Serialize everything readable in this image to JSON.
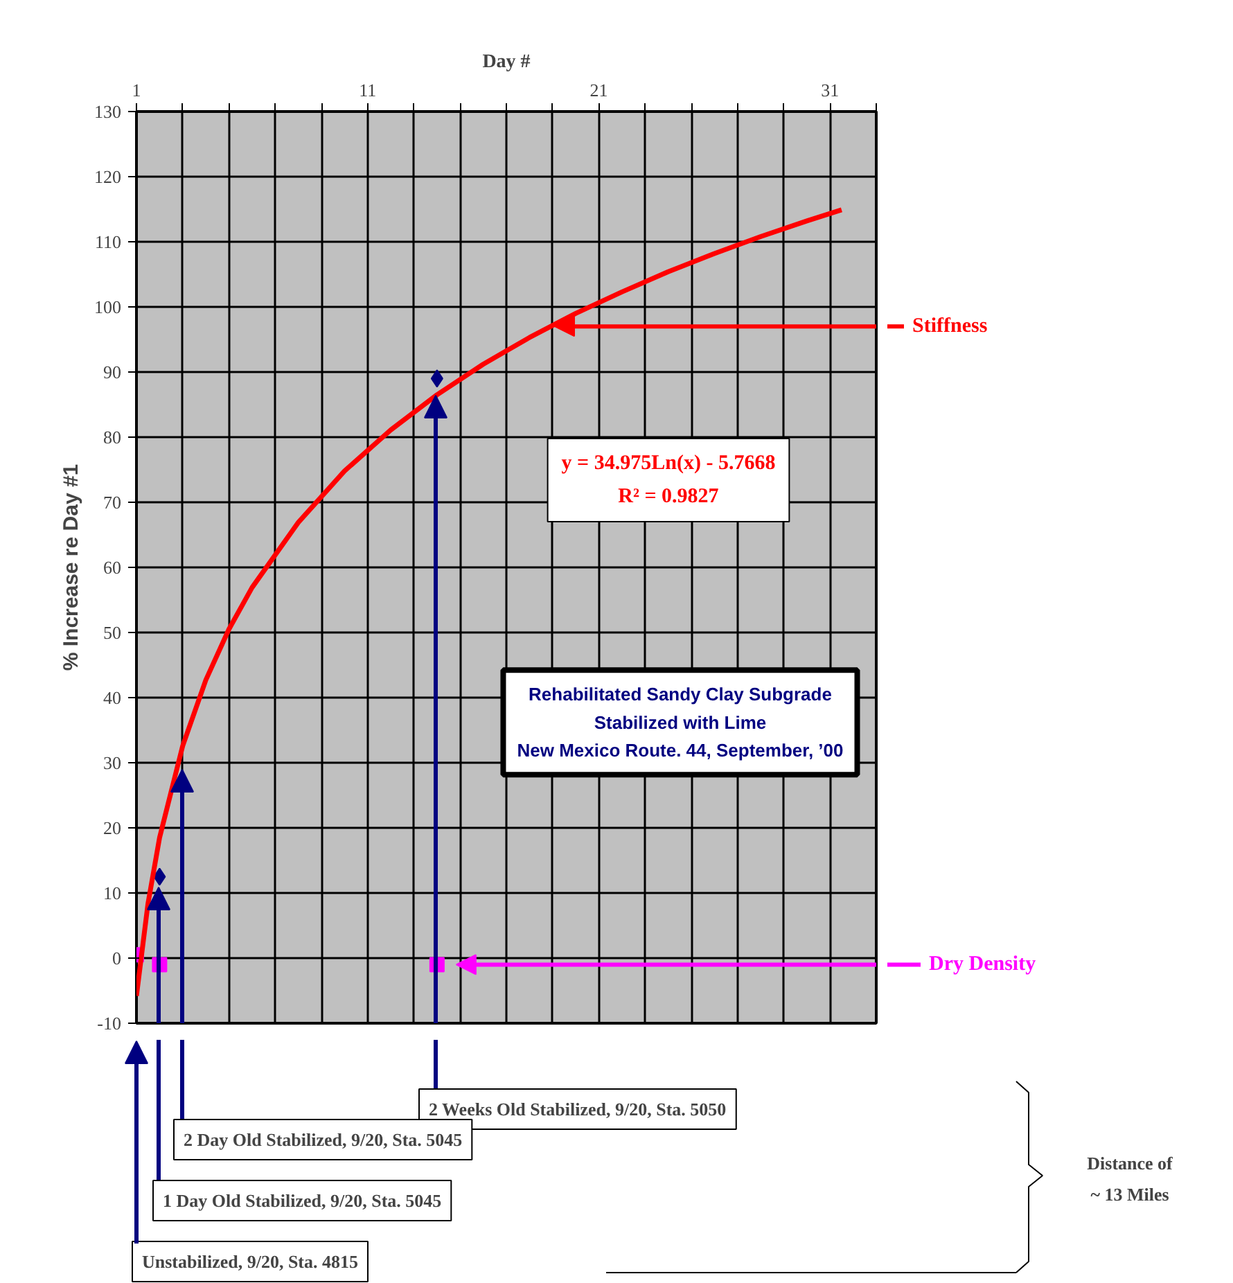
{
  "chart_data": {
    "type": "scatter",
    "title": "Rehabilitated Sandy Clay Subgrade",
    "subtitle": "Stabilized with Lime\nNew Mexico Route. 44, September, ’00",
    "xlabel": "Day #",
    "ylabel": "% Increase re Day #1",
    "xlim": [
      1,
      33
    ],
    "ylim": [
      -10,
      130
    ],
    "xticks": [
      1,
      {
        "value": 3,
        "label": null
      },
      {
        "value": 5,
        "label": null
      },
      {
        "value": 7,
        "label": null
      },
      {
        "value": 9,
        "label": null
      },
      11,
      {
        "value": 13,
        "label": null
      },
      {
        "value": 15,
        "label": null
      },
      {
        "value": 17,
        "label": null
      },
      {
        "value": 19,
        "label": null
      },
      21,
      {
        "value": 23,
        "label": null
      },
      {
        "value": 25,
        "label": null
      },
      {
        "value": 27,
        "label": null
      },
      {
        "value": 29,
        "label": null
      },
      31,
      {
        "value": 33,
        "label": null
      }
    ],
    "yticks": [
      -10,
      0,
      10,
      20,
      30,
      40,
      50,
      60,
      70,
      80,
      90,
      100,
      110,
      120,
      130
    ],
    "grid": true,
    "legend": "right",
    "series": [
      {
        "color": "#000080",
        "marker": "diamond",
        "x": [
          2,
          14
        ],
        "values": [
          12.5,
          89
        ]
      },
      {
        "name": "Dry Density",
        "color": "#ff00ff",
        "marker": "square",
        "x": [
          1,
          2,
          14
        ],
        "values": [
          0.5,
          -1,
          -1
        ]
      },
      {
        "type": "line",
        "name": "Stiffness",
        "color": "#ff0000",
        "marker": "none",
        "line_style": "solid",
        "x": [
          1,
          1.5,
          2,
          3,
          4,
          5,
          6,
          8,
          10,
          12,
          14,
          16,
          18,
          20,
          22,
          24,
          26,
          28,
          30,
          31.5
        ],
        "values": [
          -5.8,
          8.4,
          18.5,
          32.6,
          42.7,
          50.5,
          56.9,
          66.9,
          74.8,
          81.1,
          86.5,
          91.2,
          95.3,
          99,
          102.3,
          105.4,
          108.2,
          110.8,
          113.2,
          114.9
        ]
      }
    ],
    "annotations": [
      "y = 34.975Ln(x) - 5.7668",
      "R² = 0.9827",
      "2 Weeks Old Stabilized, 9/20, Sta. 5050",
      "2 Day Old Stabilized, 9/20, Sta. 5045",
      "1 Day Old Stabilized, 9/20, Sta. 5045",
      "Unstabilized, 9/20, Sta. 4815",
      "Distance of\n~ 13 Miles"
    ]
  }
}
